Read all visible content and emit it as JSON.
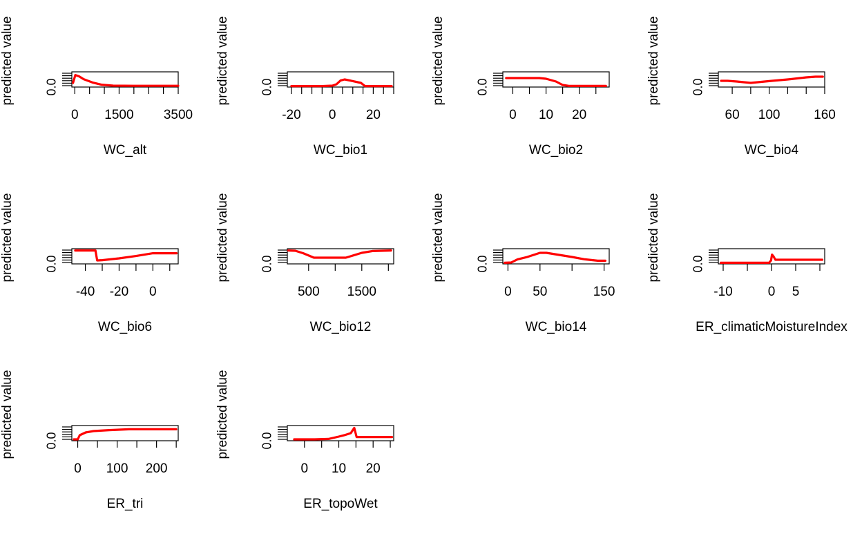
{
  "chart_data": [
    {
      "type": "line",
      "xlabel": "WC_alt",
      "ylabel": "predicted value",
      "y_tick_labels": [
        "0.0"
      ],
      "xlim": [
        -100,
        3500
      ],
      "x_ticks": [
        0,
        500,
        1000,
        1500,
        2000,
        2500,
        3000,
        3500
      ],
      "x_tick_labels": [
        "0",
        "1500",
        "3500"
      ],
      "ylim": [
        0,
        1
      ],
      "series": [
        {
          "color": "#ff0000",
          "x": [
            -60,
            20,
            150,
            300,
            600,
            900,
            1300,
            2000,
            3000,
            3500
          ],
          "y": [
            0.25,
            0.82,
            0.72,
            0.52,
            0.28,
            0.12,
            0.05,
            0.04,
            0.04,
            0.04
          ]
        }
      ]
    },
    {
      "type": "line",
      "xlabel": "WC_bio1",
      "ylabel": "predicted value",
      "y_tick_labels": [
        "0.0"
      ],
      "xlim": [
        -22,
        30
      ],
      "x_ticks": [
        -20,
        -15,
        -10,
        -5,
        0,
        5,
        10,
        15,
        20,
        25,
        30
      ],
      "x_tick_labels": [
        "-20",
        "0",
        "20"
      ],
      "ylim": [
        0,
        1
      ],
      "series": [
        {
          "color": "#ff0000",
          "x": [
            -20,
            -5,
            0,
            2,
            4,
            6,
            10,
            14,
            16,
            20,
            24,
            29
          ],
          "y": [
            0.02,
            0.02,
            0.05,
            0.15,
            0.42,
            0.5,
            0.38,
            0.25,
            0.02,
            0.02,
            0.02,
            0.02
          ]
        }
      ]
    },
    {
      "type": "line",
      "xlabel": "WC_bio2",
      "ylabel": "predicted value",
      "y_tick_labels": [
        "0.0"
      ],
      "xlim": [
        -3,
        29
      ],
      "x_ticks": [
        0,
        5,
        10,
        15,
        20,
        25
      ],
      "x_tick_labels": [
        "0",
        "10",
        "20"
      ],
      "ylim": [
        0,
        1
      ],
      "series": [
        {
          "color": "#ff0000",
          "x": [
            -2,
            4,
            8,
            10,
            13,
            15,
            17,
            20,
            24,
            28
          ],
          "y": [
            0.6,
            0.6,
            0.6,
            0.55,
            0.35,
            0.1,
            0.03,
            0.03,
            0.03,
            0.03
          ]
        }
      ]
    },
    {
      "type": "line",
      "xlabel": "WC_bio4",
      "ylabel": "predicted value",
      "y_tick_labels": [
        "0.0"
      ],
      "xlim": [
        45,
        160
      ],
      "x_ticks": [
        60,
        80,
        100,
        120,
        140,
        160
      ],
      "x_tick_labels": [
        "60",
        "100",
        "160"
      ],
      "ylim": [
        0,
        1
      ],
      "series": [
        {
          "color": "#ff0000",
          "x": [
            48,
            55,
            65,
            80,
            100,
            120,
            140,
            150,
            158
          ],
          "y": [
            0.4,
            0.4,
            0.35,
            0.25,
            0.38,
            0.5,
            0.65,
            0.7,
            0.7
          ]
        }
      ]
    },
    {
      "type": "line",
      "xlabel": "WC_bio6",
      "ylabel": "predicted value",
      "y_tick_labels": [
        "0.0"
      ],
      "xlim": [
        -48,
        15
      ],
      "x_ticks": [
        -40,
        -30,
        -20,
        -10,
        0,
        10
      ],
      "x_tick_labels": [
        "-40",
        "-20",
        "0"
      ],
      "ylim": [
        0,
        1
      ],
      "series": [
        {
          "color": "#ff0000",
          "x": [
            -46,
            -34,
            -33,
            -30,
            -20,
            -10,
            0,
            5,
            14
          ],
          "y": [
            0.92,
            0.92,
            0.2,
            0.22,
            0.35,
            0.52,
            0.72,
            0.72,
            0.72
          ]
        }
      ]
    },
    {
      "type": "line",
      "xlabel": "WC_bio12",
      "ylabel": "predicted value",
      "y_tick_labels": [
        "0.0"
      ],
      "xlim": [
        100,
        2100
      ],
      "x_ticks": [
        500,
        1000,
        1500,
        2000
      ],
      "x_tick_labels": [
        "500",
        "1500"
      ],
      "ylim": [
        0,
        1
      ],
      "series": [
        {
          "color": "#ff0000",
          "x": [
            120,
            250,
            400,
            600,
            900,
            1200,
            1500,
            1700,
            2050
          ],
          "y": [
            0.92,
            0.9,
            0.72,
            0.4,
            0.4,
            0.4,
            0.75,
            0.88,
            0.92
          ]
        }
      ]
    },
    {
      "type": "line",
      "xlabel": "WC_bio14",
      "ylabel": "predicted value",
      "y_tick_labels": [
        "0.0"
      ],
      "xlim": [
        -8,
        158
      ],
      "x_ticks": [
        0,
        50,
        100,
        150
      ],
      "x_tick_labels": [
        "0",
        "50",
        "150"
      ],
      "ylim": [
        0,
        1
      ],
      "series": [
        {
          "color": "#ff0000",
          "x": [
            -5,
            5,
            15,
            30,
            50,
            60,
            80,
            100,
            120,
            140,
            152
          ],
          "y": [
            0.03,
            0.05,
            0.28,
            0.45,
            0.75,
            0.75,
            0.6,
            0.45,
            0.28,
            0.18,
            0.18
          ]
        }
      ]
    },
    {
      "type": "line",
      "xlabel": "ER_climaticMoistureIndex",
      "ylabel": "predicted value",
      "y_tick_labels": [
        "0.0"
      ],
      "xlim": [
        -11,
        11
      ],
      "x_ticks": [
        -10,
        -5,
        0,
        5,
        10
      ],
      "x_tick_labels": [
        "-10",
        "0",
        "5"
      ],
      "ylim": [
        0,
        1
      ],
      "series": [
        {
          "color": "#ff0000",
          "x": [
            -10.5,
            -3,
            -0.5,
            -0.1,
            0.1,
            0.4,
            0.8,
            5,
            10.5
          ],
          "y": [
            0.03,
            0.03,
            0.03,
            0.2,
            0.62,
            0.5,
            0.25,
            0.25,
            0.25
          ]
        }
      ]
    },
    {
      "type": "line",
      "xlabel": "ER_tri",
      "ylabel": "predicted value",
      "y_tick_labels": [
        "0.0"
      ],
      "xlim": [
        -15,
        255
      ],
      "x_ticks": [
        0,
        50,
        100,
        150,
        200,
        250
      ],
      "x_tick_labels": [
        "0",
        "100",
        "200"
      ],
      "ylim": [
        0,
        1
      ],
      "series": [
        {
          "color": "#ff0000",
          "x": [
            -10,
            0,
            5,
            20,
            40,
            80,
            130,
            200,
            250
          ],
          "y": [
            0.05,
            0.05,
            0.35,
            0.55,
            0.65,
            0.72,
            0.78,
            0.78,
            0.78
          ]
        }
      ]
    },
    {
      "type": "line",
      "xlabel": "ER_topoWet",
      "ylabel": "predicted value",
      "y_tick_labels": [
        "0.0"
      ],
      "xlim": [
        -5,
        26
      ],
      "x_ticks": [
        0,
        5,
        10,
        15,
        20,
        25
      ],
      "x_tick_labels": [
        "0",
        "10",
        "20"
      ],
      "ylim": [
        0,
        1
      ],
      "series": [
        {
          "color": "#ff0000",
          "x": [
            -3,
            3,
            7,
            10,
            12,
            13.5,
            14.5,
            15.2,
            20,
            25.5
          ],
          "y": [
            0.05,
            0.05,
            0.08,
            0.25,
            0.38,
            0.5,
            0.88,
            0.22,
            0.22,
            0.22
          ]
        }
      ]
    }
  ]
}
